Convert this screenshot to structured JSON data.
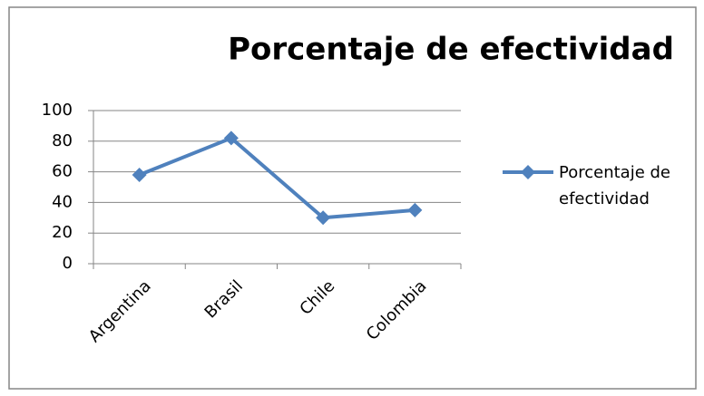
{
  "chart_data": {
    "type": "line",
    "title": "Porcentaje de efectividad",
    "categories": [
      "Argentina",
      "Brasil",
      "Chile",
      "Colombia"
    ],
    "series": [
      {
        "name": "Porcentaje de efectividad",
        "color": "#4f81bd",
        "values": [
          58,
          82,
          30,
          35
        ]
      }
    ],
    "ylim": [
      0,
      100
    ],
    "yticks": [
      0,
      20,
      40,
      60,
      80,
      100
    ],
    "grid": true,
    "legend": "right"
  }
}
